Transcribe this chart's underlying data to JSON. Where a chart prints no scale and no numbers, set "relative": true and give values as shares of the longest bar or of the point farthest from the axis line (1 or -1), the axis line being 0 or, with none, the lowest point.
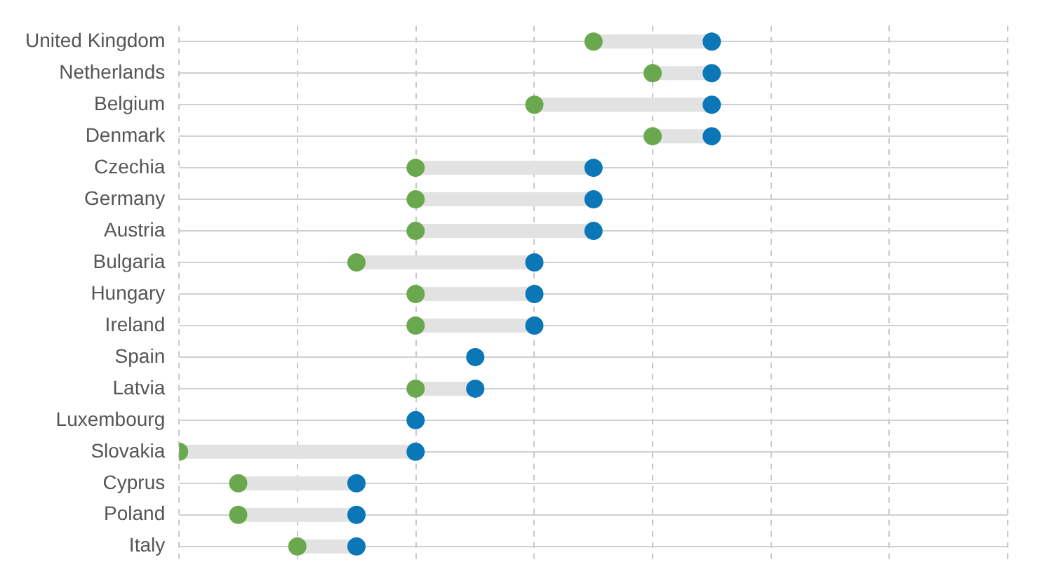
{
  "chart_data": {
    "type": "scatter",
    "orientation": "horizontal",
    "relative": true,
    "grid": true,
    "legend": false,
    "marker": "circle",
    "categories": [
      "United Kingdom",
      "Netherlands",
      "Belgium",
      "Denmark",
      "Czechia",
      "Germany",
      "Austria",
      "Bulgaria",
      "Hungary",
      "Ireland",
      "Spain",
      "Latvia",
      "Luxembourg",
      "Slovakia",
      "Cyprus",
      "Poland",
      "Italy"
    ],
    "series": [
      {
        "color": "#6aa84f",
        "values": [
          0.778,
          0.889,
          0.667,
          0.889,
          0.444,
          0.444,
          0.444,
          0.333,
          0.444,
          0.444,
          null,
          0.444,
          null,
          0,
          0.111,
          0.111,
          0.222
        ]
      },
      {
        "color": "#0b77b7",
        "values": [
          1,
          1,
          1,
          1,
          0.778,
          0.778,
          0.778,
          0.667,
          0.667,
          0.667,
          0.556,
          0.556,
          0.444,
          0.444,
          0.333,
          0.333,
          0.333
        ]
      }
    ]
  }
}
